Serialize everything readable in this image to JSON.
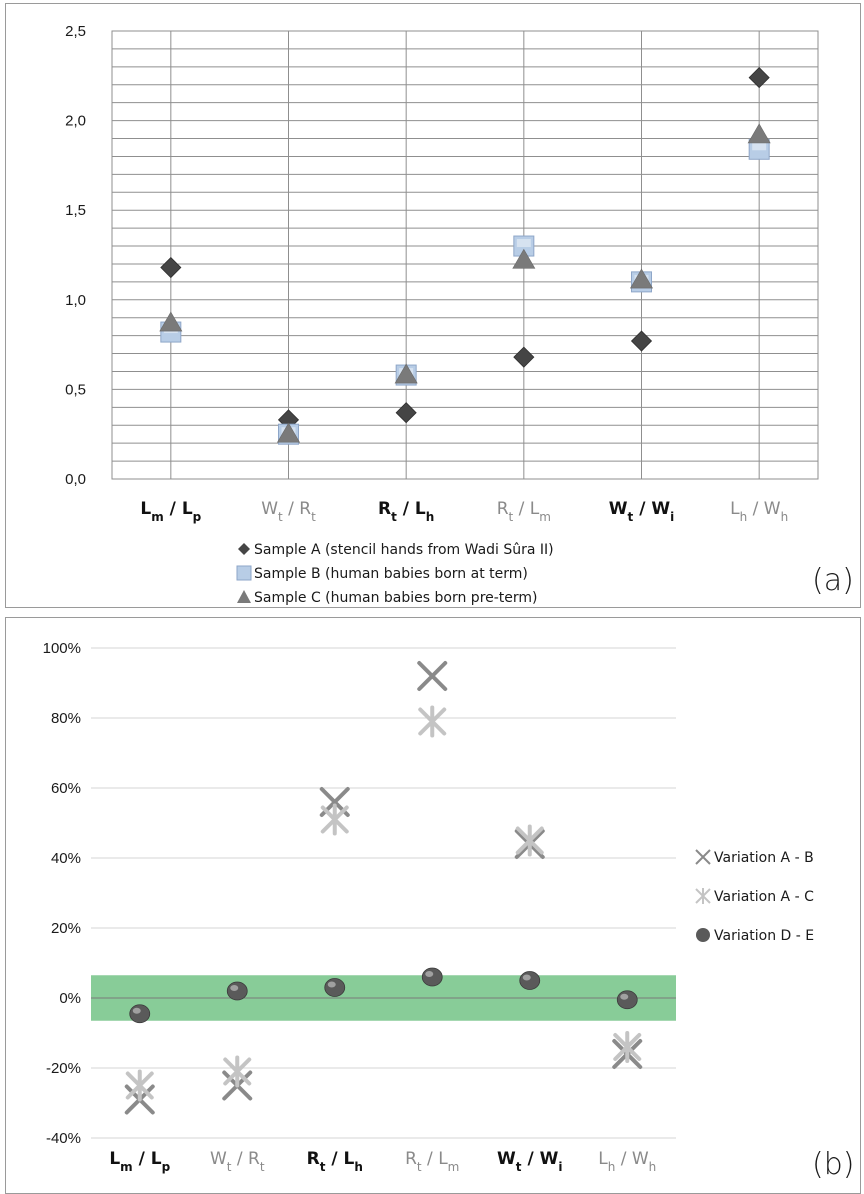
{
  "chart_data": [
    {
      "type": "scatter",
      "panel_label": "(a)",
      "categories": [
        {
          "main1": "L",
          "sub1": "m",
          "sep": " / ",
          "main2": "L",
          "sub2": "p",
          "bold": true,
          "color": "#111111"
        },
        {
          "main1": "W",
          "sub1": "t",
          "sep": " / ",
          "main2": "R",
          "sub2": "t",
          "bold": false,
          "color": "#8a8a8a"
        },
        {
          "main1": "R",
          "sub1": "t",
          "sep": " / ",
          "main2": "L",
          "sub2": "h",
          "bold": true,
          "color": "#111111"
        },
        {
          "main1": "R",
          "sub1": "t",
          "sep": " / ",
          "main2": "L",
          "sub2": "m",
          "bold": false,
          "color": "#8a8a8a"
        },
        {
          "main1": "W",
          "sub1": "t",
          "sep": " / ",
          "main2": "W",
          "sub2": "i",
          "bold": true,
          "color": "#111111"
        },
        {
          "main1": "L",
          "sub1": "h",
          "sep": " / ",
          "main2": "W",
          "sub2": "h",
          "bold": false,
          "color": "#8a8a8a"
        }
      ],
      "yticks": [
        "0,0",
        "0,5",
        "1,0",
        "1,5",
        "2,0",
        "2,5"
      ],
      "ylim": [
        0,
        2.5
      ],
      "grid": "minor horizontal every 0.1, vertical at each category",
      "series": [
        {
          "name": "Sample A (stencil hands from Wadi Sûra II)",
          "marker": "diamond",
          "color": "#454545",
          "values": [
            1.18,
            0.33,
            0.37,
            0.68,
            0.77,
            2.24
          ]
        },
        {
          "name": "Sample B (human babies born at term)",
          "marker": "square",
          "color": "#b8cde6",
          "values": [
            0.82,
            0.25,
            0.58,
            1.3,
            1.1,
            1.84
          ]
        },
        {
          "name": "Sample C (human babies born pre-term)",
          "marker": "triangle",
          "color": "#7a7a7a",
          "values": [
            0.87,
            0.25,
            0.58,
            1.22,
            1.11,
            1.92
          ]
        }
      ],
      "legend_position": "bottom"
    },
    {
      "type": "scatter",
      "panel_label": "(b)",
      "categories": [
        {
          "main1": "L",
          "sub1": "m",
          "sep": " / ",
          "main2": "L",
          "sub2": "p",
          "bold": true,
          "color": "#111111"
        },
        {
          "main1": "W",
          "sub1": "t",
          "sep": " / ",
          "main2": "R",
          "sub2": "t",
          "bold": false,
          "color": "#8a8a8a"
        },
        {
          "main1": "R",
          "sub1": "t",
          "sep": " / ",
          "main2": "L",
          "sub2": "h",
          "bold": true,
          "color": "#111111"
        },
        {
          "main1": "R",
          "sub1": "t",
          "sep": " / ",
          "main2": "L",
          "sub2": "m",
          "bold": false,
          "color": "#8a8a8a"
        },
        {
          "main1": "W",
          "sub1": "t",
          "sep": " / ",
          "main2": "W",
          "sub2": "i",
          "bold": true,
          "color": "#111111"
        },
        {
          "main1": "L",
          "sub1": "h",
          "sep": " / ",
          "main2": "W",
          "sub2": "h",
          "bold": false,
          "color": "#8a8a8a"
        }
      ],
      "yticks": [
        "-40%",
        "-20%",
        "0%",
        "20%",
        "40%",
        "60%",
        "80%",
        "100%"
      ],
      "ylim": [
        -40,
        100
      ],
      "band": {
        "from": -6.5,
        "to": 6.5,
        "color": "#88cc98"
      },
      "series": [
        {
          "name": "Variation A - B",
          "marker": "x",
          "color": "#8a8a8a",
          "values": [
            -29,
            -25,
            56,
            92,
            44,
            -16
          ]
        },
        {
          "name": "Variation A - C",
          "marker": "asterisk",
          "color": "#c4c4c4",
          "values": [
            -25,
            -21,
            51,
            79,
            45,
            -14
          ]
        },
        {
          "name": "Variation D - E",
          "marker": "sphere",
          "color": "#5a5a5a",
          "values": [
            -4.5,
            2,
            3,
            6,
            5,
            -0.5
          ]
        }
      ],
      "legend_position": "right"
    }
  ]
}
